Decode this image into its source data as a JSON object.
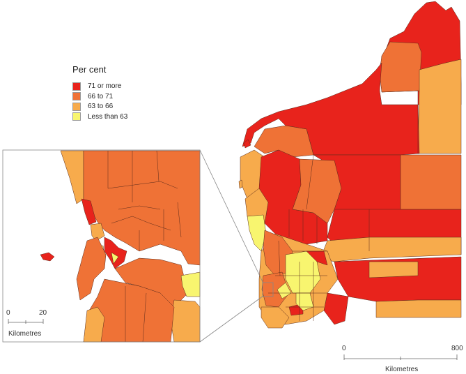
{
  "legend": {
    "title": "Per cent",
    "items": [
      {
        "label": "71 or more",
        "color": "#e8231c"
      },
      {
        "label": "66 to 71",
        "color": "#ef7236"
      },
      {
        "label": "63 to 66",
        "color": "#f7ab4c"
      },
      {
        "label": "Less than 63",
        "color": "#f8f56f"
      }
    ]
  },
  "inset_scale": {
    "start": "0",
    "end": "20",
    "unit": "Kilometres"
  },
  "main_scale": {
    "start": "0",
    "end": "800",
    "unit": "Kilometres"
  },
  "colors": {
    "boundary": "#5a2a1a",
    "frame": "#888888",
    "background": "#ffffff"
  }
}
